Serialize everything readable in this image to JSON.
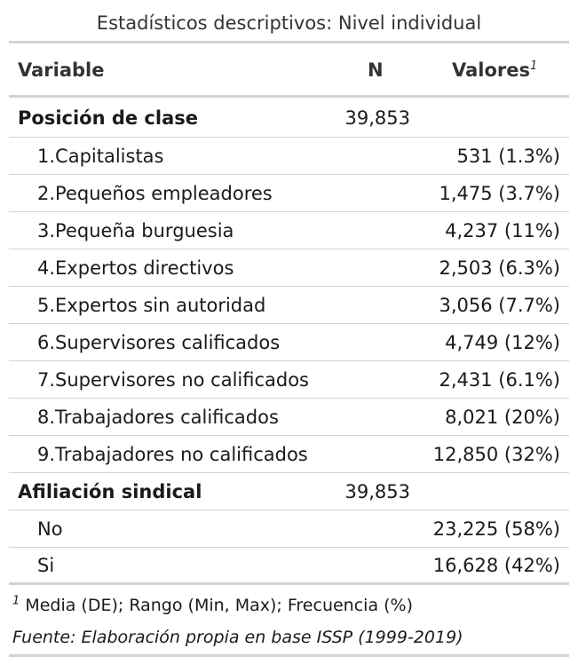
{
  "table": {
    "caption": "Estadísticos descriptivos: Nivel individual",
    "headers": {
      "variable": "Variable",
      "n": "N",
      "values": "Valores",
      "values_footnote_mark": "1"
    },
    "groups": [
      {
        "label": "Posición de clase",
        "n": "39,853",
        "rows": [
          {
            "label": "1.Capitalistas",
            "value": "531 (1.3%)"
          },
          {
            "label": "2.Pequeños empleadores",
            "value": "1,475 (3.7%)"
          },
          {
            "label": "3.Pequeña burguesia",
            "value": "4,237 (11%)"
          },
          {
            "label": "4.Expertos directivos",
            "value": "2,503 (6.3%)"
          },
          {
            "label": "5.Expertos sin autoridad",
            "value": "3,056 (7.7%)"
          },
          {
            "label": "6.Supervisores calificados",
            "value": "4,749 (12%)"
          },
          {
            "label": "7.Supervisores no calificados",
            "value": "2,431 (6.1%)"
          },
          {
            "label": "8.Trabajadores calificados",
            "value": "8,021 (20%)"
          },
          {
            "label": "9.Trabajadores no calificados",
            "value": "12,850 (32%)"
          }
        ]
      },
      {
        "label": "Afiliación sindical",
        "n": "39,853",
        "rows": [
          {
            "label": "No",
            "value": "23,225 (58%)"
          },
          {
            "label": "Si",
            "value": "16,628 (42%)"
          }
        ]
      }
    ],
    "footnote_mark": "1",
    "footnote": "Media (DE); Rango (Min, Max); Frecuencia (%)",
    "source": "Fuente: Elaboración propia en base ISSP (1999-2019)"
  },
  "colors": {
    "rule": "#d3d3d3",
    "text": "#1a1a1a",
    "header_text": "#333333"
  }
}
